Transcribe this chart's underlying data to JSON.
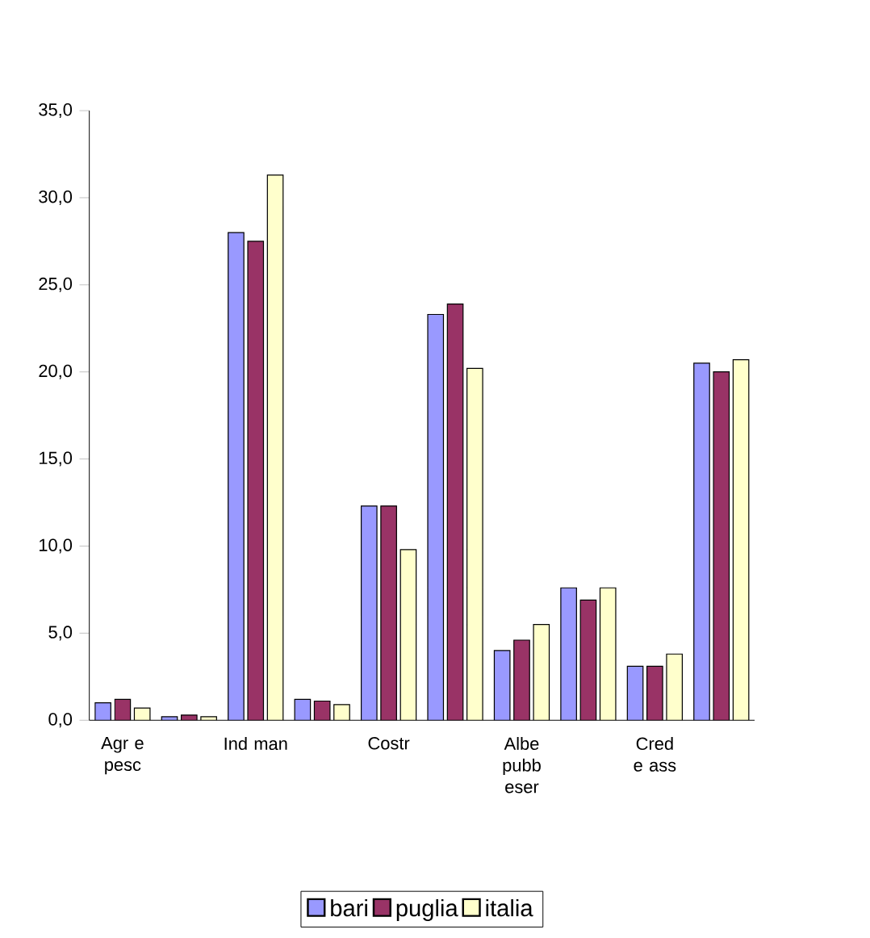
{
  "chart_data": {
    "type": "bar",
    "categories": [
      "Agr e pesc",
      null,
      "Ind man",
      null,
      "Costr",
      null,
      "Albe pubb eser",
      null,
      "Cred e ass",
      null
    ],
    "series": [
      {
        "name": "bari",
        "color": "#9999ff",
        "values": [
          1.0,
          0.2,
          28.0,
          1.2,
          12.3,
          23.3,
          4.0,
          7.6,
          3.1,
          20.5
        ]
      },
      {
        "name": "puglia",
        "color": "#993366",
        "values": [
          1.2,
          0.3,
          27.5,
          1.1,
          12.3,
          23.9,
          4.6,
          6.9,
          3.1,
          20.0
        ]
      },
      {
        "name": "italia",
        "color": "#ffffcc",
        "values": [
          0.7,
          0.2,
          31.3,
          0.9,
          9.8,
          20.2,
          5.5,
          7.6,
          3.8,
          20.7
        ]
      }
    ],
    "ylim": [
      0,
      35
    ],
    "yticks": [
      {
        "value": 0,
        "label": "0,0"
      },
      {
        "value": 5,
        "label": "5,0"
      },
      {
        "value": 10,
        "label": "10,0"
      },
      {
        "value": 15,
        "label": "15,0"
      },
      {
        "value": 20,
        "label": "20,0"
      },
      {
        "value": 25,
        "label": "25,0"
      },
      {
        "value": 30,
        "label": "30,0"
      },
      {
        "value": 35,
        "label": "35,0"
      }
    ],
    "grid": false,
    "legend": "bottom"
  }
}
